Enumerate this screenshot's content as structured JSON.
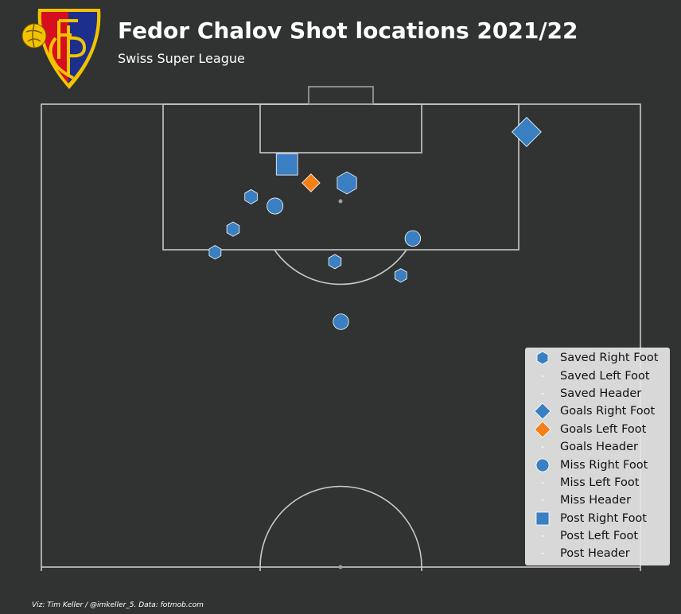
{
  "header": {
    "title": "Fedor Chalov Shot locations 2021/22",
    "subtitle": "Swiss Super League",
    "logo_icon": "fc-basel-crest-icon"
  },
  "footer": {
    "credit": "Viz: Tim Keller / @imkeller_5. Data: fotmob.com"
  },
  "colors": {
    "background": "#313332",
    "pitch_lines": "#c8c8c8",
    "right_foot": "#3a7fc1",
    "left_foot": "#f57f17",
    "legend_bg": "#e6e6e6"
  },
  "chart_data": {
    "type": "scatter",
    "pitch": "half-pitch, vertical, attacking upwards",
    "marker_encoding": {
      "hexagon": "Saved",
      "diamond": "Goals",
      "circle": "Miss",
      "square": "Post"
    },
    "legend": {
      "position": "bottom-right",
      "entries": [
        {
          "label": "Saved Right Foot",
          "shape": "hexagon",
          "color": "#3a7fc1"
        },
        {
          "label": "Saved Left Foot",
          "shape": "dot",
          "color": "#ffffff"
        },
        {
          "label": "Saved Header",
          "shape": "dot",
          "color": "#ffffff"
        },
        {
          "label": "Goals Right Foot",
          "shape": "diamond",
          "color": "#3a7fc1"
        },
        {
          "label": "Goals Left Foot",
          "shape": "diamond",
          "color": "#f57f17"
        },
        {
          "label": "Goals Header",
          "shape": "dot",
          "color": "#ffffff"
        },
        {
          "label": "Miss Right Foot",
          "shape": "circle",
          "color": "#3a7fc1"
        },
        {
          "label": "Miss Left Foot",
          "shape": "dot",
          "color": "#ffffff"
        },
        {
          "label": "Miss Header",
          "shape": "dot",
          "color": "#ffffff"
        },
        {
          "label": "Post Right Foot",
          "shape": "square",
          "color": "#3a7fc1"
        },
        {
          "label": "Post Left Foot",
          "shape": "dot",
          "color": "#ffffff"
        },
        {
          "label": "Post Header",
          "shape": "dot",
          "color": "#ffffff"
        }
      ]
    },
    "shots": [
      {
        "result": "Goals",
        "foot": "Right Foot",
        "x": 0.81,
        "y": 0.06,
        "xg": 0.55
      },
      {
        "result": "Post",
        "foot": "Right Foot",
        "x": 0.41,
        "y": 0.13,
        "xg": 0.22
      },
      {
        "result": "Goals",
        "foot": "Left Foot",
        "x": 0.45,
        "y": 0.17,
        "xg": 0.12
      },
      {
        "result": "Saved",
        "foot": "Right Foot",
        "x": 0.51,
        "y": 0.17,
        "xg": 0.25
      },
      {
        "result": "Saved",
        "foot": "Right Foot",
        "x": 0.35,
        "y": 0.2,
        "xg": 0.05
      },
      {
        "result": "Miss",
        "foot": "Right Foot",
        "x": 0.39,
        "y": 0.22,
        "xg": 0.08
      },
      {
        "result": "Saved",
        "foot": "Right Foot",
        "x": 0.32,
        "y": 0.27,
        "xg": 0.05
      },
      {
        "result": "Miss",
        "foot": "Right Foot",
        "x": 0.62,
        "y": 0.29,
        "xg": 0.07
      },
      {
        "result": "Saved",
        "foot": "Right Foot",
        "x": 0.29,
        "y": 0.32,
        "xg": 0.04
      },
      {
        "result": "Saved",
        "foot": "Right Foot",
        "x": 0.49,
        "y": 0.34,
        "xg": 0.05
      },
      {
        "result": "Saved",
        "foot": "Right Foot",
        "x": 0.6,
        "y": 0.37,
        "xg": 0.04
      },
      {
        "result": "Miss",
        "foot": "Right Foot",
        "x": 0.5,
        "y": 0.47,
        "xg": 0.07
      }
    ]
  }
}
